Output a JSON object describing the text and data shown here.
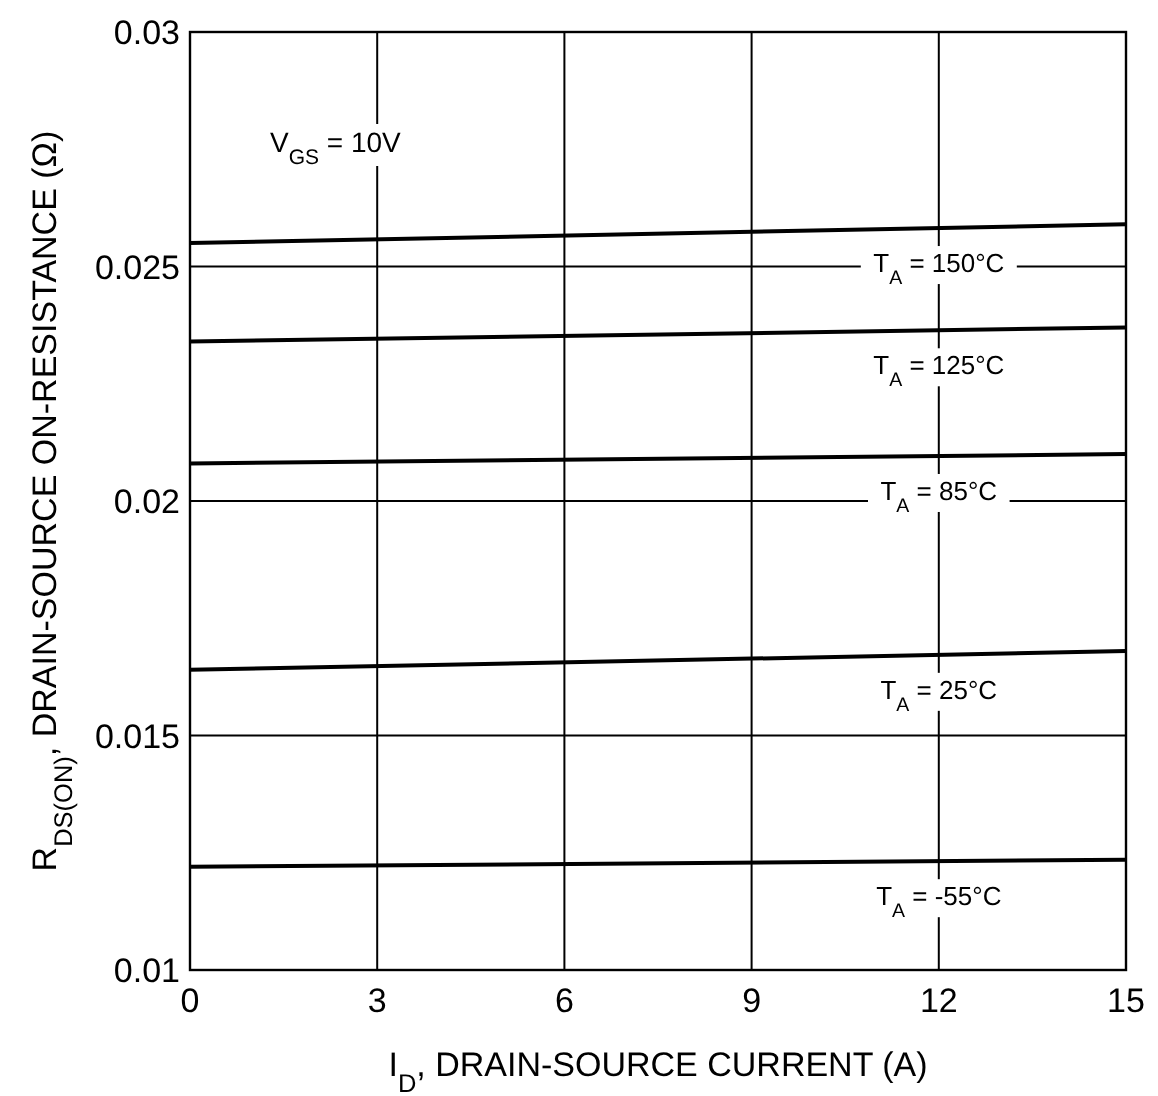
{
  "chart_data": {
    "type": "line",
    "xlabel": "I$_{D}$, DRAIN-SOURCE CURRENT (A)",
    "ylabel": "R$_{DS(ON)}$, DRAIN-SOURCE ON-RESISTANCE (Ω)",
    "x": [
      0,
      15
    ],
    "xlim": [
      0,
      15
    ],
    "xticks": [
      0,
      3,
      6,
      9,
      12,
      15
    ],
    "ylim": [
      0.01,
      0.03
    ],
    "yticks": [
      0.01,
      0.015,
      0.02,
      0.025,
      0.03
    ],
    "grid": true,
    "legend": false,
    "marker": "none",
    "line_style": "solid",
    "annotations": [
      "V$_{GS}$ = 10V"
    ],
    "series": [
      {
        "name": "T$_{A}$ = 150°C",
        "color": "#000000",
        "values": [
          0.0255,
          0.0259
        ]
      },
      {
        "name": "T$_{A}$ = 125°C",
        "color": "#000000",
        "values": [
          0.0234,
          0.0237
        ]
      },
      {
        "name": "T$_{A}$ = 85°C",
        "color": "#000000",
        "values": [
          0.0208,
          0.021
        ]
      },
      {
        "name": "T$_{A}$ = 25°C",
        "color": "#000000",
        "values": [
          0.0164,
          0.0168
        ]
      },
      {
        "name": "T$_{A}$ = -55°C",
        "color": "#000000",
        "values": [
          0.0122,
          0.01235
        ]
      }
    ]
  }
}
